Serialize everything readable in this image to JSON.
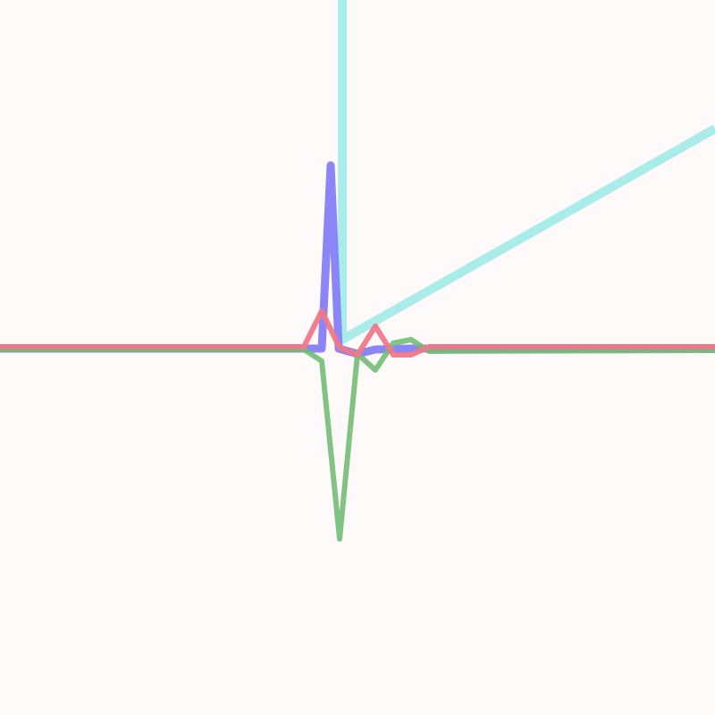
{
  "chart_data": {
    "type": "line",
    "title": "",
    "xlabel": "",
    "ylabel": "",
    "grid": false,
    "legend": "none",
    "xlim": [
      -19,
      21
    ],
    "ylim": [
      -20.5,
      19.5
    ],
    "series": [
      {
        "name": "cyan",
        "color": "#a9ece9",
        "opacity": 1,
        "width": 10,
        "x": [
          0.15,
          0.15,
          21
        ],
        "y": [
          20,
          0.5,
          12.3
        ]
      },
      {
        "name": "blue",
        "color": "#8b86f8",
        "opacity": 1,
        "width": 9,
        "x": [
          -19,
          -1,
          -0.5,
          -0.05,
          1,
          2,
          4,
          21
        ],
        "y": [
          0,
          0,
          10.25,
          0,
          -0.3,
          -0.05,
          0,
          0
        ]
      },
      {
        "name": "green",
        "color": "#72bd74",
        "opacity": 0.9,
        "width": 6,
        "x": [
          -19,
          -2,
          -1,
          0,
          1,
          2,
          3,
          4,
          5,
          21
        ],
        "y": [
          -0.05,
          -0.05,
          -0.7,
          -10.65,
          -0.3,
          -1.2,
          0.3,
          0.5,
          -0.15,
          -0.1
        ]
      },
      {
        "name": "red",
        "color": "#f07888",
        "opacity": 0.95,
        "width": 6,
        "x": [
          -19,
          -2,
          -1,
          0,
          1,
          2,
          3,
          4,
          5,
          21
        ],
        "y": [
          0.1,
          0.1,
          2.1,
          0.05,
          -0.35,
          1.25,
          -0.35,
          -0.35,
          0.1,
          0.1
        ]
      }
    ]
  }
}
